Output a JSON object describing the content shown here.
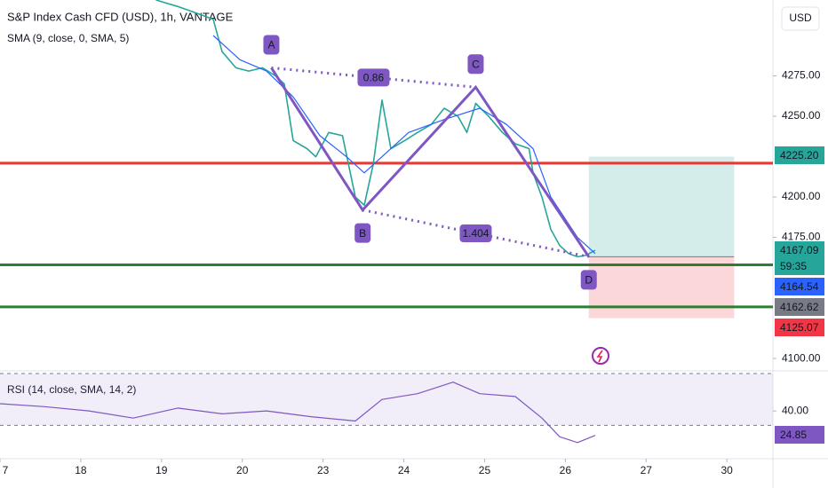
{
  "chart_data": [
    {
      "type": "line",
      "title": "S&P Index Cash CFD (USD), 1h, VANTAGE",
      "subtitle": "SMA (9, close, 0, SMA, 5)",
      "currency": "USD",
      "xlim": [
        0,
        9.57
      ],
      "xticks": [
        {
          "value": 0,
          "label": "7"
        },
        {
          "value": 1,
          "label": "18"
        },
        {
          "value": 2,
          "label": "19"
        },
        {
          "value": 3,
          "label": "20"
        },
        {
          "value": 4,
          "label": "23"
        },
        {
          "value": 5,
          "label": "24"
        },
        {
          "value": 6,
          "label": "25"
        },
        {
          "value": 7,
          "label": "26"
        },
        {
          "value": 8,
          "label": "27"
        },
        {
          "value": 9,
          "label": "30"
        }
      ],
      "ylim": [
        4094,
        4322
      ],
      "yticks": [
        {
          "value": 4100,
          "label": "4100.00"
        },
        {
          "value": 4175,
          "label": "4175.00"
        },
        {
          "value": 4200,
          "label": "4200.00"
        },
        {
          "value": 4250,
          "label": "4250.00"
        },
        {
          "value": 4275,
          "label": "4275.00"
        }
      ],
      "series": [
        {
          "color": "#26a69a",
          "x": [
            1.93,
            2.2,
            2.37,
            2.64,
            2.75,
            2.92,
            3.08,
            3.25,
            3.41,
            3.52,
            3.63,
            3.8,
            3.91,
            4.07,
            4.24,
            4.4,
            4.51,
            4.62,
            4.73,
            4.84,
            5.01,
            5.17,
            5.34,
            5.5,
            5.67,
            5.78,
            5.89,
            6.05,
            6.22,
            6.38,
            6.55,
            6.6,
            6.71,
            6.82,
            6.93,
            7.04,
            7.15,
            7.26,
            7.37
          ],
          "values": [
            4322,
            4318,
            4315,
            4310,
            4290,
            4280,
            4278,
            4280,
            4275,
            4270,
            4235,
            4230,
            4225,
            4240,
            4238,
            4200,
            4195,
            4220,
            4260,
            4230,
            4235,
            4240,
            4245,
            4255,
            4250,
            4240,
            4258,
            4250,
            4240,
            4233,
            4230,
            4215,
            4200,
            4180,
            4170,
            4165,
            4163,
            4164,
            4167
          ]
        },
        {
          "color": "#2962ff",
          "x": [
            2.64,
            2.97,
            3.3,
            3.63,
            3.96,
            4.29,
            4.51,
            4.73,
            5.06,
            5.5,
            5.94,
            6.27,
            6.6,
            6.82,
            7.15,
            7.37
          ],
          "values": [
            4300,
            4285,
            4278,
            4262,
            4238,
            4225,
            4215,
            4225,
            4240,
            4248,
            4255,
            4245,
            4230,
            4200,
            4175,
            4165
          ]
        }
      ],
      "hlines": [
        {
          "value": 4221,
          "color": "#e53935"
        },
        {
          "value": 4158,
          "color": "#2e7d32"
        },
        {
          "value": 4132,
          "color": "#2e7d32"
        }
      ],
      "pattern": {
        "points": [
          {
            "label": "A",
            "x": 3.36,
            "y": 4280
          },
          {
            "label": "B",
            "x": 4.49,
            "y": 4192
          },
          {
            "label": "C",
            "x": 5.89,
            "y": 4268
          },
          {
            "label": "D",
            "x": 7.29,
            "y": 4163
          }
        ],
        "ratios": [
          "0.86",
          "1.404"
        ]
      },
      "position": {
        "x": [
          7.29,
          9.09
        ],
        "target": 4225,
        "entry": 4163,
        "stop": 4125
      },
      "price_labels": [
        "4225.20",
        "4167.09",
        "59:35",
        "4164.54",
        "4162.62",
        "4125.07"
      ]
    },
    {
      "type": "line",
      "title": "RSI (14, close, SMA, 14, 2)",
      "ylim": [
        8,
        66
      ],
      "yticks": [
        {
          "value": 40,
          "label": "40.00"
        }
      ],
      "band": [
        30,
        66
      ],
      "series": [
        {
          "color": "#7e57c2",
          "x": [
            0,
            0.55,
            1.1,
            1.65,
            2.2,
            2.75,
            3.3,
            3.85,
            4.4,
            4.73,
            5.17,
            5.61,
            5.94,
            6.38,
            6.71,
            6.93,
            7.15,
            7.37
          ],
          "values": [
            45,
            43,
            40,
            35,
            42,
            38,
            40,
            36,
            33,
            48,
            52,
            60,
            52,
            50,
            35,
            22,
            18,
            23
          ]
        }
      ],
      "price_labels": [
        "24.85"
      ]
    }
  ]
}
